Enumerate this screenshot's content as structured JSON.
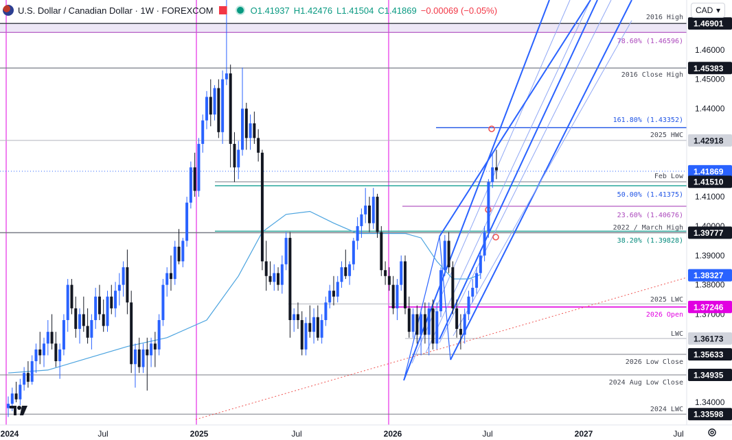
{
  "header": {
    "symbol": "U.S. Dollar / Canadian Dollar · 1W · FOREXCOM",
    "open": "O1.41937",
    "high": "H1.42476",
    "low": "L1.41504",
    "close": "C1.41869",
    "change": "−0.00069 (−0.05%)"
  },
  "currency": "CAD",
  "colors": {
    "bull": "#2962ff",
    "bear": "#131722",
    "ma": "#4aa3df",
    "level": "#9598a1",
    "fib_teal": "#26a69a",
    "fib_purple": "#ba68c8",
    "pink": "#e91e63",
    "magenta": "#e100e1",
    "pitchfork": "#2962ff"
  },
  "chart_data": {
    "type": "candlestick",
    "timeframe": "1W",
    "ylim": [
      1.3323,
      1.477
    ],
    "y_ticks": [
      1.34,
      1.35,
      1.36,
      1.37,
      1.38,
      1.39,
      1.4,
      1.41,
      1.42,
      1.43,
      1.44,
      1.45,
      1.46
    ],
    "y_tick_labels": [
      "1.34000",
      "",
      "",
      "1.37000",
      "1.38000",
      "1.39000",
      "1.40000",
      "1.41000",
      "",
      "",
      "1.44000",
      "1.45000",
      "1.46000"
    ],
    "x_tick_labels": [
      "2024",
      "Jul",
      "2025",
      "Jul",
      "2026",
      "Jul",
      "2027",
      "Jul"
    ],
    "price_labels": [
      {
        "value": 1.46901,
        "label": "1.46901",
        "style": "dark"
      },
      {
        "value": 1.45383,
        "label": "1.45383",
        "style": "dark"
      },
      {
        "value": 1.42918,
        "label": "1.42918",
        "style": "light"
      },
      {
        "value": 1.41869,
        "label": "1.41869",
        "style": "current"
      },
      {
        "value": 1.4151,
        "label": "1.41510",
        "style": "dark"
      },
      {
        "value": 1.39777,
        "label": "1.39777",
        "style": "dark"
      },
      {
        "value": 1.38327,
        "label": "1.38327",
        "style": "ma"
      },
      {
        "value": 1.37246,
        "label": "1.37246",
        "style": "pink"
      },
      {
        "value": 1.36173,
        "label": "1.36173",
        "style": "light"
      },
      {
        "value": 1.35633,
        "label": "1.35633",
        "style": "dark"
      },
      {
        "value": 1.34935,
        "label": "1.34935",
        "style": "dark"
      },
      {
        "value": 1.33598,
        "label": "1.33598",
        "style": "dark"
      }
    ],
    "levels": [
      {
        "name": "2016 High",
        "value": 1.46901
      },
      {
        "name": "2016 Close High",
        "value": 1.45383
      },
      {
        "name": "2025 HWC",
        "value": 1.42918
      },
      {
        "name": "Feb Low",
        "value": 1.4151
      },
      {
        "name": "2022 / March High",
        "value": 1.39777
      },
      {
        "name": "2025 LWC",
        "value": 1.3735
      },
      {
        "name": "2026 Open",
        "value": 1.37246
      },
      {
        "name": "LWC",
        "value": 1.36173
      },
      {
        "name": "2026 Low Close",
        "value": 1.35633
      },
      {
        "name": "2024 Aug Low Close",
        "value": 1.34935
      },
      {
        "name": "2024 LWC",
        "value": 1.33598
      }
    ],
    "fib_levels": [
      {
        "label": "78.60% (1.46596)",
        "value": 1.46596
      },
      {
        "label": "161.80% (1.43352)",
        "value": 1.43352
      },
      {
        "label": "50.00% (1.41375)",
        "value": 1.41375
      },
      {
        "label": "23.60% (1.40676)",
        "value": 1.40676
      },
      {
        "label": "38.20% (1.39828)",
        "value": 1.39828
      }
    ],
    "candles": [
      [
        1.338,
        1.342,
        1.335,
        1.3395
      ],
      [
        1.3395,
        1.345,
        1.337,
        1.343
      ],
      [
        1.343,
        1.347,
        1.34,
        1.341
      ],
      [
        1.341,
        1.348,
        1.339,
        1.346
      ],
      [
        1.346,
        1.352,
        1.344,
        1.35
      ],
      [
        1.35,
        1.354,
        1.345,
        1.347
      ],
      [
        1.347,
        1.356,
        1.346,
        1.354
      ],
      [
        1.354,
        1.36,
        1.35,
        1.358
      ],
      [
        1.358,
        1.364,
        1.353,
        1.356
      ],
      [
        1.356,
        1.362,
        1.352,
        1.36
      ],
      [
        1.36,
        1.368,
        1.356,
        1.364
      ],
      [
        1.364,
        1.37,
        1.358,
        1.36
      ],
      [
        1.36,
        1.364,
        1.352,
        1.354
      ],
      [
        1.354,
        1.36,
        1.348,
        1.358
      ],
      [
        1.358,
        1.37,
        1.356,
        1.368
      ],
      [
        1.368,
        1.382,
        1.364,
        1.38
      ],
      [
        1.38,
        1.382,
        1.37,
        1.372
      ],
      [
        1.372,
        1.376,
        1.362,
        1.365
      ],
      [
        1.365,
        1.372,
        1.36,
        1.37
      ],
      [
        1.37,
        1.376,
        1.364,
        1.366
      ],
      [
        1.366,
        1.372,
        1.36,
        1.362
      ],
      [
        1.362,
        1.37,
        1.358,
        1.368
      ],
      [
        1.368,
        1.379,
        1.365,
        1.376
      ],
      [
        1.376,
        1.38,
        1.368,
        1.37
      ],
      [
        1.37,
        1.375,
        1.364,
        1.366
      ],
      [
        1.366,
        1.378,
        1.364,
        1.376
      ],
      [
        1.376,
        1.38,
        1.37,
        1.372
      ],
      [
        1.372,
        1.381,
        1.369,
        1.378
      ],
      [
        1.378,
        1.384,
        1.373,
        1.38
      ],
      [
        1.38,
        1.388,
        1.376,
        1.386
      ],
      [
        1.386,
        1.392,
        1.37,
        1.374
      ],
      [
        1.374,
        1.378,
        1.35,
        1.353
      ],
      [
        1.353,
        1.36,
        1.345,
        1.358
      ],
      [
        1.358,
        1.362,
        1.35,
        1.352
      ],
      [
        1.352,
        1.36,
        1.35,
        1.358
      ],
      [
        1.358,
        1.362,
        1.344,
        1.356
      ],
      [
        1.356,
        1.362,
        1.352,
        1.36
      ],
      [
        1.36,
        1.364,
        1.352,
        1.358
      ],
      [
        1.358,
        1.37,
        1.356,
        1.368
      ],
      [
        1.368,
        1.382,
        1.366,
        1.38
      ],
      [
        1.38,
        1.386,
        1.376,
        1.384
      ],
      [
        1.384,
        1.39,
        1.378,
        1.382
      ],
      [
        1.382,
        1.395,
        1.38,
        1.393
      ],
      [
        1.393,
        1.399,
        1.387,
        1.388
      ],
      [
        1.388,
        1.396,
        1.386,
        1.395
      ],
      [
        1.395,
        1.41,
        1.393,
        1.408
      ],
      [
        1.408,
        1.422,
        1.406,
        1.42
      ],
      [
        1.42,
        1.425,
        1.41,
        1.412
      ],
      [
        1.412,
        1.43,
        1.41,
        1.428
      ],
      [
        1.428,
        1.438,
        1.425,
        1.436
      ],
      [
        1.436,
        1.446,
        1.433,
        1.444
      ],
      [
        1.444,
        1.45,
        1.434,
        1.438
      ],
      [
        1.438,
        1.448,
        1.436,
        1.447
      ],
      [
        1.447,
        1.45,
        1.43,
        1.432
      ],
      [
        1.432,
        1.453,
        1.428,
        1.45
      ],
      [
        1.45,
        1.478,
        1.448,
        1.452
      ],
      [
        1.452,
        1.455,
        1.42,
        1.428
      ],
      [
        1.428,
        1.432,
        1.415,
        1.42
      ],
      [
        1.42,
        1.429,
        1.416,
        1.426
      ],
      [
        1.426,
        1.454,
        1.424,
        1.44
      ],
      [
        1.44,
        1.442,
        1.426,
        1.43
      ],
      [
        1.43,
        1.438,
        1.426,
        1.435
      ],
      [
        1.435,
        1.439,
        1.428,
        1.43
      ],
      [
        1.43,
        1.433,
        1.422,
        1.425
      ],
      [
        1.425,
        1.426,
        1.385,
        1.388
      ],
      [
        1.388,
        1.395,
        1.378,
        1.383
      ],
      [
        1.383,
        1.388,
        1.38,
        1.381
      ],
      [
        1.381,
        1.387,
        1.378,
        1.384
      ],
      [
        1.384,
        1.386,
        1.378,
        1.38
      ],
      [
        1.38,
        1.39,
        1.377,
        1.387
      ],
      [
        1.387,
        1.398,
        1.385,
        1.396
      ],
      [
        1.396,
        1.398,
        1.362,
        1.368
      ],
      [
        1.368,
        1.372,
        1.364,
        1.37
      ],
      [
        1.37,
        1.374,
        1.365,
        1.368
      ],
      [
        1.368,
        1.371,
        1.356,
        1.358
      ],
      [
        1.358,
        1.369,
        1.356,
        1.367
      ],
      [
        1.367,
        1.373,
        1.362,
        1.364
      ],
      [
        1.364,
        1.372,
        1.36,
        1.369
      ],
      [
        1.369,
        1.373,
        1.361,
        1.362
      ],
      [
        1.362,
        1.37,
        1.36,
        1.368
      ],
      [
        1.368,
        1.376,
        1.366,
        1.374
      ],
      [
        1.374,
        1.38,
        1.372,
        1.378
      ],
      [
        1.378,
        1.383,
        1.373,
        1.376
      ],
      [
        1.376,
        1.383,
        1.374,
        1.381
      ],
      [
        1.381,
        1.388,
        1.379,
        1.386
      ],
      [
        1.386,
        1.392,
        1.382,
        1.383
      ],
      [
        1.383,
        1.388,
        1.38,
        1.387
      ],
      [
        1.387,
        1.396,
        1.385,
        1.395
      ],
      [
        1.395,
        1.403,
        1.392,
        1.4
      ],
      [
        1.4,
        1.406,
        1.396,
        1.404
      ],
      [
        1.404,
        1.413,
        1.401,
        1.407
      ],
      [
        1.407,
        1.41,
        1.398,
        1.401
      ],
      [
        1.401,
        1.413,
        1.399,
        1.41
      ],
      [
        1.41,
        1.411,
        1.396,
        1.398
      ],
      [
        1.398,
        1.4,
        1.383,
        1.385
      ],
      [
        1.385,
        1.388,
        1.38,
        1.383
      ],
      [
        1.383,
        1.386,
        1.378,
        1.38
      ],
      [
        1.38,
        1.383,
        1.37,
        1.372
      ],
      [
        1.372,
        1.382,
        1.368,
        1.38
      ],
      [
        1.38,
        1.39,
        1.378,
        1.388
      ],
      [
        1.388,
        1.39,
        1.37,
        1.372
      ],
      [
        1.372,
        1.376,
        1.362,
        1.364
      ],
      [
        1.364,
        1.372,
        1.362,
        1.37
      ],
      [
        1.37,
        1.373,
        1.36,
        1.363
      ],
      [
        1.363,
        1.372,
        1.356,
        1.37
      ],
      [
        1.37,
        1.374,
        1.36,
        1.363
      ],
      [
        1.363,
        1.374,
        1.356,
        1.372
      ],
      [
        1.372,
        1.375,
        1.358,
        1.36
      ],
      [
        1.36,
        1.374,
        1.358,
        1.371
      ],
      [
        1.371,
        1.386,
        1.369,
        1.385
      ],
      [
        1.385,
        1.397,
        1.383,
        1.395
      ],
      [
        1.395,
        1.398,
        1.384,
        1.386
      ],
      [
        1.386,
        1.388,
        1.37,
        1.372
      ],
      [
        1.372,
        1.375,
        1.362,
        1.365
      ],
      [
        1.365,
        1.37,
        1.358,
        1.363
      ],
      [
        1.363,
        1.372,
        1.36,
        1.37
      ],
      [
        1.37,
        1.378,
        1.368,
        1.376
      ],
      [
        1.376,
        1.382,
        1.374,
        1.379
      ],
      [
        1.379,
        1.386,
        1.377,
        1.384
      ],
      [
        1.384,
        1.392,
        1.382,
        1.39
      ],
      [
        1.39,
        1.4,
        1.388,
        1.398
      ],
      [
        1.398,
        1.416,
        1.396,
        1.415
      ],
      [
        1.415,
        1.425,
        1.413,
        1.42
      ],
      [
        1.42,
        1.426,
        1.416,
        1.419
      ]
    ],
    "moving_average": [
      [
        0,
        1.35
      ],
      [
        10,
        1.351
      ],
      [
        20,
        1.355
      ],
      [
        30,
        1.359
      ],
      [
        40,
        1.362
      ],
      [
        50,
        1.368
      ],
      [
        58,
        1.383
      ],
      [
        64,
        1.398
      ],
      [
        70,
        1.404
      ],
      [
        76,
        1.405
      ],
      [
        82,
        1.401
      ],
      [
        88,
        1.3975
      ],
      [
        94,
        1.3975
      ],
      [
        100,
        1.3975
      ],
      [
        104,
        1.396
      ],
      [
        108,
        1.388
      ],
      [
        112,
        1.382
      ],
      [
        116,
        1.382
      ],
      [
        119,
        1.3835
      ]
    ]
  }
}
